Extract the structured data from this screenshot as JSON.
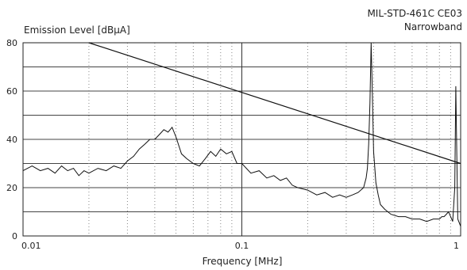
{
  "chart_data": {
    "type": "line",
    "title_line1": "MIL-STD-461C CE03",
    "title_line2": "Narrowband",
    "ylabel": "Emission Level [dBµA]",
    "xlabel": "Frequency [MHz]",
    "x_scale": "log",
    "xlim": [
      0.01,
      1
    ],
    "ylim": [
      0,
      80
    ],
    "x_ticks": [
      {
        "value": 0.01,
        "label": "0.01"
      },
      {
        "value": 0.1,
        "label": "0.1"
      },
      {
        "value": 1,
        "label": "1"
      }
    ],
    "y_ticks": [
      {
        "value": 0,
        "label": "0"
      },
      {
        "value": 20,
        "label": "20"
      },
      {
        "value": 40,
        "label": "40"
      },
      {
        "value": 60,
        "label": "60"
      },
      {
        "value": 80,
        "label": "80"
      }
    ],
    "grid": true,
    "limit_line": {
      "x": [
        0.02,
        1
      ],
      "y": [
        80,
        30
      ]
    },
    "series": [
      {
        "x": [
          0.01,
          0.011,
          0.012,
          0.013,
          0.014,
          0.015,
          0.016,
          0.017,
          0.018,
          0.019,
          0.02,
          0.022,
          0.024,
          0.026,
          0.028,
          0.03,
          0.032,
          0.034,
          0.036,
          0.038,
          0.04,
          0.042,
          0.044,
          0.046,
          0.048,
          0.05,
          0.053,
          0.056,
          0.06,
          0.064,
          0.068,
          0.072,
          0.076,
          0.08,
          0.085,
          0.09,
          0.095,
          0.1,
          0.11,
          0.12,
          0.13,
          0.14,
          0.15,
          0.16,
          0.17,
          0.18,
          0.2,
          0.22,
          0.24,
          0.26,
          0.28,
          0.3,
          0.32,
          0.34,
          0.36,
          0.37,
          0.375,
          0.38,
          0.385,
          0.39,
          0.395,
          0.4,
          0.41,
          0.42,
          0.43,
          0.45,
          0.48,
          0.52,
          0.56,
          0.6,
          0.65,
          0.7,
          0.75,
          0.78,
          0.8,
          0.82,
          0.84,
          0.86,
          0.88,
          0.9,
          0.92,
          0.94,
          0.95,
          0.96,
          0.97,
          1.0
        ],
        "y": [
          27,
          29,
          27,
          28,
          26,
          29,
          27,
          28,
          25,
          27,
          26,
          28,
          27,
          29,
          28,
          31,
          33,
          36,
          38,
          40,
          40,
          42,
          44,
          43,
          45,
          41,
          34,
          32,
          30,
          29,
          32,
          35,
          33,
          36,
          34,
          35,
          30,
          30,
          26,
          27,
          24,
          25,
          23,
          24,
          21,
          20,
          19,
          17,
          18,
          16,
          17,
          16,
          17,
          18,
          20,
          24,
          28,
          38,
          55,
          80,
          58,
          35,
          22,
          17,
          13,
          11,
          9,
          8,
          8,
          7,
          7,
          6,
          7,
          7,
          7,
          8,
          8,
          9,
          10,
          8,
          6,
          20,
          62,
          35,
          7,
          4
        ]
      }
    ]
  }
}
